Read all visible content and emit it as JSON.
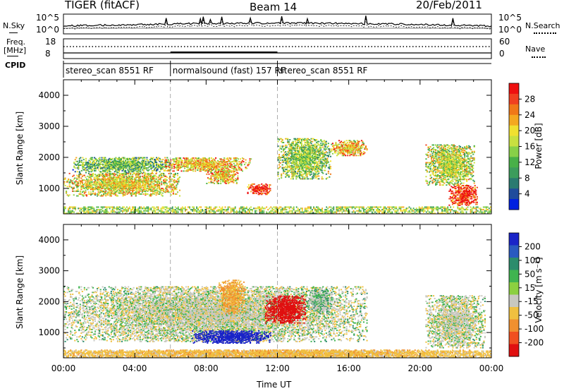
{
  "header": {
    "radar": "TIGER (fitACF)",
    "beam": "Beam 14",
    "date": "20/Feb/2011"
  },
  "top_panels": {
    "nsky_label": "N.Sky",
    "nsky_ticks": [
      "10^5",
      "10^0"
    ],
    "nsearch_label": "N.Search",
    "freq_label": "Freq.",
    "freq_unit": "[MHz]",
    "freq_ticks": [
      "18",
      "8"
    ],
    "nave_ticks": [
      "60",
      "0"
    ],
    "nave_label": "Nave",
    "cpid_label": "CPID"
  },
  "cpid_segments": [
    {
      "label": "stereo_scan 8551 RF",
      "start_hour": 0
    },
    {
      "label": "normalsound (fast) 157 RF",
      "start_hour": 6
    },
    {
      "label": "stereo_scan 8551 RF",
      "start_hour": 12
    }
  ],
  "axes": {
    "x_ticks": [
      "00:00",
      "04:00",
      "08:00",
      "12:00",
      "16:00",
      "20:00",
      "00:00"
    ],
    "x_label": "Time UT",
    "y_ticks": [
      "1000",
      "2000",
      "3000",
      "4000"
    ],
    "y_label": "Slant Range [km]"
  },
  "colorbars": {
    "power_title": "Power [dB]",
    "power_ticks": [
      "28",
      "24",
      "20",
      "16",
      "12",
      "8",
      "4"
    ],
    "power_colors": [
      "#ee1010",
      "#f04020",
      "#f07818",
      "#f4a820",
      "#f0e030",
      "#c8e040",
      "#88d048",
      "#48b048",
      "#3c9c5c",
      "#2a7a70",
      "#204c9c",
      "#0020e0"
    ],
    "velocity_title": "Velocity [m s⁻¹]",
    "velocity_ticks": [
      "200",
      "100",
      "50",
      "15",
      "-15",
      "-50",
      "-100",
      "-200"
    ],
    "velocity_colors": [
      "#1a24c8",
      "#2a5ac0",
      "#2c8c6c",
      "#40b450",
      "#8cd040",
      "#c8c8c0",
      "#f0c040",
      "#f09030",
      "#f05020",
      "#e01010"
    ]
  },
  "chart_data": [
    {
      "type": "heatmap",
      "quantity": "Power",
      "unit": "dB",
      "x_range_hours": [
        0,
        24
      ],
      "y_range_km": [
        180,
        4500
      ],
      "color_range": [
        0,
        30
      ],
      "regions": [
        {
          "t0": 0.0,
          "t1": 6.5,
          "r0": 750,
          "r1": 1500,
          "level": 18
        },
        {
          "t0": 0.5,
          "t1": 6.0,
          "r0": 1500,
          "r1": 2000,
          "level": 12
        },
        {
          "t0": 5.5,
          "t1": 10.5,
          "r0": 1550,
          "r1": 2000,
          "level": 20
        },
        {
          "t0": 8.0,
          "t1": 9.8,
          "r0": 1150,
          "r1": 1600,
          "level": 20
        },
        {
          "t0": 10.3,
          "t1": 11.6,
          "r0": 800,
          "r1": 1150,
          "level": 28
        },
        {
          "t0": 12.0,
          "t1": 15.0,
          "r0": 1300,
          "r1": 2600,
          "level": 14
        },
        {
          "t0": 15.0,
          "t1": 17.0,
          "r0": 2050,
          "r1": 2550,
          "level": 20
        },
        {
          "t0": 20.3,
          "t1": 23.0,
          "r0": 1100,
          "r1": 2400,
          "level": 16
        },
        {
          "t0": 21.6,
          "t1": 23.2,
          "r0": 450,
          "r1": 1100,
          "level": 28
        }
      ]
    },
    {
      "type": "heatmap",
      "quantity": "Velocity",
      "unit": "m s^-1",
      "x_range_hours": [
        0,
        24
      ],
      "y_range_km": [
        180,
        4500
      ],
      "color_range": [
        -200,
        200
      ],
      "regions": [
        {
          "t0": 0.0,
          "t1": 17.0,
          "r0": 700,
          "r1": 2500,
          "level": 0
        },
        {
          "t0": 7.2,
          "t1": 11.6,
          "r0": 650,
          "r1": 1050,
          "level": 200
        },
        {
          "t0": 11.3,
          "t1": 13.6,
          "r0": 1300,
          "r1": 2200,
          "level": -200
        },
        {
          "t0": 8.7,
          "t1": 10.2,
          "r0": 1600,
          "r1": 2700,
          "level": -50
        },
        {
          "t0": 13.6,
          "t1": 15.0,
          "r0": 1600,
          "r1": 2400,
          "level": 15
        },
        {
          "t0": 20.3,
          "t1": 23.6,
          "r0": 500,
          "r1": 2200,
          "level": 0
        },
        {
          "t0": 0.0,
          "t1": 24.0,
          "r0": 180,
          "r1": 450,
          "level": -50
        }
      ]
    }
  ]
}
